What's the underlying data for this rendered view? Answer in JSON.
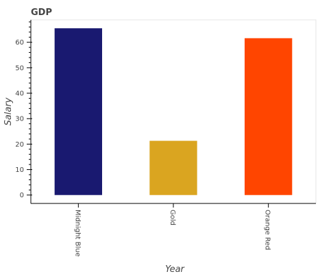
{
  "chart_data": {
    "type": "bar",
    "title": "GDP",
    "xlabel": "Year",
    "ylabel": "Salary",
    "categories": [
      "Midnight Blue",
      "Gold",
      "Orange Red"
    ],
    "values": [
      65.5,
      21.3,
      61.6
    ],
    "colors": [
      "#191970",
      "#DAA520",
      "#FF4500"
    ],
    "ylim": [
      -3.3,
      68.8
    ],
    "yticks": [
      0,
      10,
      20,
      30,
      40,
      50,
      60
    ],
    "grid": false,
    "legend": "none"
  }
}
